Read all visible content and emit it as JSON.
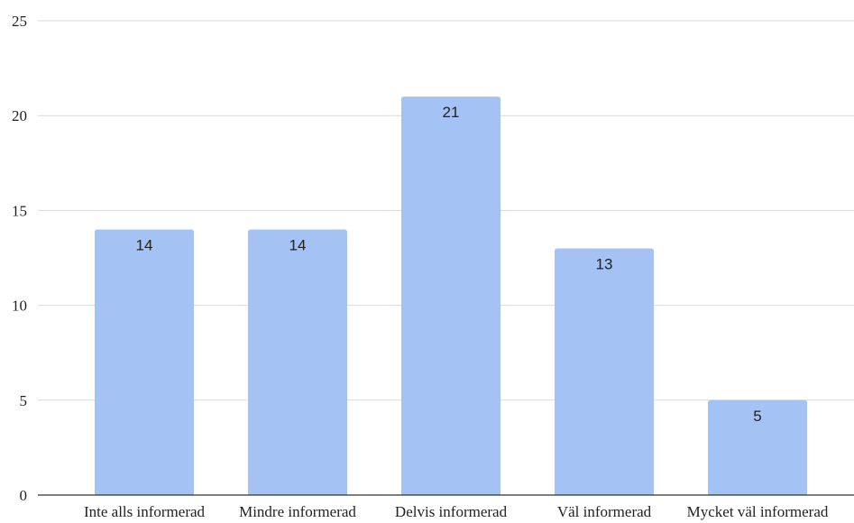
{
  "chart_data": {
    "type": "bar",
    "title": "",
    "xlabel": "",
    "ylabel": "",
    "categories": [
      "Inte alls informerad",
      "Mindre informerad",
      "Delvis informerad",
      "Väl informerad",
      "Mycket väl informerad"
    ],
    "values": [
      14,
      14,
      21,
      13,
      5
    ],
    "data_labels": [
      "14",
      "14",
      "21",
      "13",
      "5"
    ],
    "ylim": [
      0,
      25
    ],
    "yticks": [
      0,
      5,
      10,
      15,
      20,
      25
    ],
    "ytick_labels": [
      "0",
      "5",
      "10",
      "15",
      "20",
      "25"
    ],
    "grid": true,
    "legend": "none",
    "bar_color": "#a4c2f4"
  }
}
